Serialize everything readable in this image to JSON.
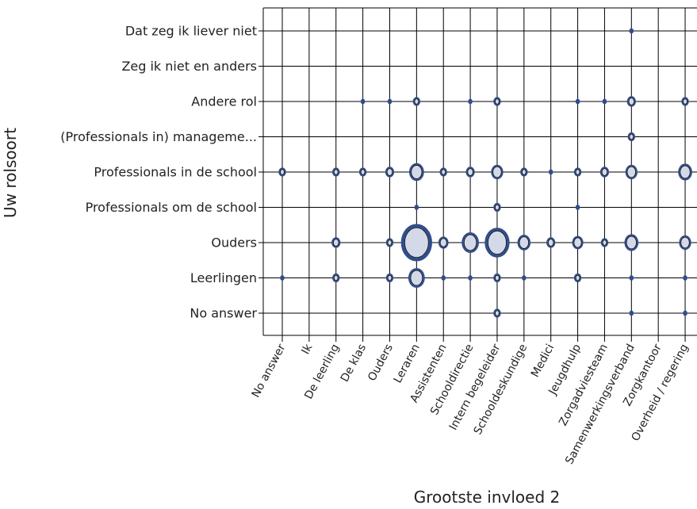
{
  "chart_data": {
    "type": "scatter",
    "subtype": "bubble",
    "xlabel": "Grootste invloed 2",
    "ylabel": "Uw rolsoort",
    "grid": true,
    "x_categories": [
      "No answer",
      "Ik",
      "De leerling",
      "De klas",
      "Ouders",
      "Leraren",
      "Assistenten",
      "Schooldirectie",
      "Intern begeleider",
      "Schooldeskundige",
      "Medici",
      "Jeugdhulp",
      "Zorgadviesteam",
      "Samenwerkingsverband",
      "Zorgkantoor",
      "Overheid / regering"
    ],
    "y_categories": [
      "Dat zeg ik liever niet",
      "Zeg ik niet en anders",
      "Andere rol",
      "(Professionals in) manageme...",
      "Professionals in de school",
      "Professionals om de school",
      "Ouders",
      "Leerlingen",
      "No answer"
    ],
    "colors": {
      "outline": "#2f4d8f",
      "fill": "#d3d9e8",
      "grid": "#000000"
    },
    "points": [
      {
        "x": "Samenwerkingsverband",
        "y": "Dat zeg ik liever niet",
        "size": 1
      },
      {
        "x": "De klas",
        "y": "Andere rol",
        "size": 1
      },
      {
        "x": "Ouders",
        "y": "Andere rol",
        "size": 1
      },
      {
        "x": "Leraren",
        "y": "Andere rol",
        "size": 2
      },
      {
        "x": "Schooldirectie",
        "y": "Andere rol",
        "size": 1
      },
      {
        "x": "Intern begeleider",
        "y": "Andere rol",
        "size": 2
      },
      {
        "x": "Jeugdhulp",
        "y": "Andere rol",
        "size": 1
      },
      {
        "x": "Zorgadviesteam",
        "y": "Andere rol",
        "size": 1
      },
      {
        "x": "Samenwerkingsverband",
        "y": "Andere rol",
        "size": 3
      },
      {
        "x": "Overheid / regering",
        "y": "Andere rol",
        "size": 2
      },
      {
        "x": "Samenwerkingsverband",
        "y": "(Professionals in) manageme...",
        "size": 2
      },
      {
        "x": "No answer",
        "y": "Professionals in de school",
        "size": 2
      },
      {
        "x": "De leerling",
        "y": "Professionals in de school",
        "size": 2
      },
      {
        "x": "De klas",
        "y": "Professionals in de school",
        "size": 2
      },
      {
        "x": "Ouders",
        "y": "Professionals in de school",
        "size": 3
      },
      {
        "x": "Leraren",
        "y": "Professionals in de school",
        "size": 9
      },
      {
        "x": "Assistenten",
        "y": "Professionals in de school",
        "size": 2
      },
      {
        "x": "Schooldirectie",
        "y": "Professionals in de school",
        "size": 3
      },
      {
        "x": "Intern begeleider",
        "y": "Professionals in de school",
        "size": 6
      },
      {
        "x": "Schooldeskundige",
        "y": "Professionals in de school",
        "size": 2
      },
      {
        "x": "Medici",
        "y": "Professionals in de school",
        "size": 1
      },
      {
        "x": "Jeugdhulp",
        "y": "Professionals in de school",
        "size": 2
      },
      {
        "x": "Zorgadviesteam",
        "y": "Professionals in de school",
        "size": 3
      },
      {
        "x": "Samenwerkingsverband",
        "y": "Professionals in de school",
        "size": 6
      },
      {
        "x": "Overheid / regering",
        "y": "Professionals in de school",
        "size": 8
      },
      {
        "x": "Leraren",
        "y": "Professionals om de school",
        "size": 1
      },
      {
        "x": "Intern begeleider",
        "y": "Professionals om de school",
        "size": 2
      },
      {
        "x": "Jeugdhulp",
        "y": "Professionals om de school",
        "size": 1
      },
      {
        "x": "De leerling",
        "y": "Ouders",
        "size": 3
      },
      {
        "x": "Ouders",
        "y": "Ouders",
        "size": 2
      },
      {
        "x": "Leraren",
        "y": "Ouders",
        "size": 40
      },
      {
        "x": "Assistenten",
        "y": "Ouders",
        "size": 4
      },
      {
        "x": "Schooldirectie",
        "y": "Ouders",
        "size": 12
      },
      {
        "x": "Intern begeleider",
        "y": "Ouders",
        "size": 25
      },
      {
        "x": "Schooldeskundige",
        "y": "Ouders",
        "size": 7
      },
      {
        "x": "Medici",
        "y": "Ouders",
        "size": 3
      },
      {
        "x": "Jeugdhulp",
        "y": "Ouders",
        "size": 5
      },
      {
        "x": "Zorgadviesteam",
        "y": "Ouders",
        "size": 2
      },
      {
        "x": "Samenwerkingsverband",
        "y": "Ouders",
        "size": 8
      },
      {
        "x": "Overheid / regering",
        "y": "Ouders",
        "size": 6
      },
      {
        "x": "No answer",
        "y": "Leerlingen",
        "size": 1
      },
      {
        "x": "De leerling",
        "y": "Leerlingen",
        "size": 2
      },
      {
        "x": "Ouders",
        "y": "Leerlingen",
        "size": 2
      },
      {
        "x": "Leraren",
        "y": "Leerlingen",
        "size": 11
      },
      {
        "x": "Assistenten",
        "y": "Leerlingen",
        "size": 1
      },
      {
        "x": "Schooldirectie",
        "y": "Leerlingen",
        "size": 1
      },
      {
        "x": "Intern begeleider",
        "y": "Leerlingen",
        "size": 2
      },
      {
        "x": "Schooldeskundige",
        "y": "Leerlingen",
        "size": 1
      },
      {
        "x": "Jeugdhulp",
        "y": "Leerlingen",
        "size": 2
      },
      {
        "x": "Samenwerkingsverband",
        "y": "Leerlingen",
        "size": 1
      },
      {
        "x": "Overheid / regering",
        "y": "Leerlingen",
        "size": 1
      },
      {
        "x": "Intern begeleider",
        "y": "No answer",
        "size": 2
      },
      {
        "x": "Samenwerkingsverband",
        "y": "No answer",
        "size": 1
      },
      {
        "x": "Overheid / regering",
        "y": "No answer",
        "size": 1
      }
    ]
  }
}
